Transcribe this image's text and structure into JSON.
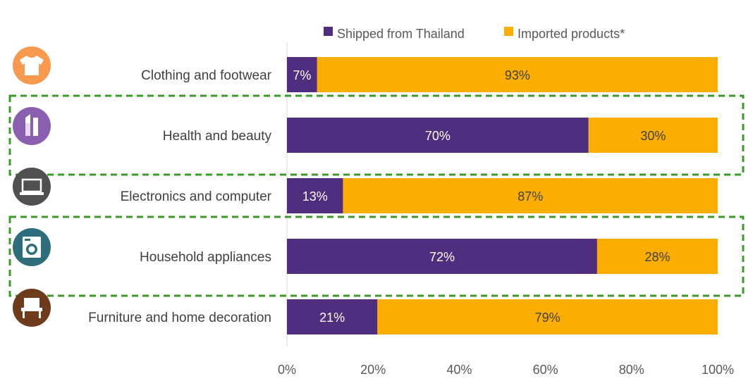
{
  "chart_data": {
    "type": "bar",
    "orientation": "horizontal",
    "stacked": true,
    "categories": [
      "Clothing and footwear",
      "Health and beauty",
      "Electronics and computer",
      "Household appliances",
      "Furniture and home decoration"
    ],
    "series": [
      {
        "name": "Shipped from Thailand",
        "values": [
          7,
          70,
          13,
          72,
          21
        ],
        "color": "#4f2d7f",
        "label_color": "#ffffff"
      },
      {
        "name": "Imported products*",
        "values": [
          93,
          30,
          87,
          28,
          79
        ],
        "color": "#fbae00",
        "label_color": "#404040"
      }
    ],
    "data_labels": [
      [
        "7%",
        "70%",
        "13%",
        "72%",
        "21%"
      ],
      [
        "93%",
        "30%",
        "87%",
        "28%",
        "79%"
      ]
    ],
    "xlim": [
      0,
      100
    ],
    "xticks": [
      "0%",
      "20%",
      "40%",
      "60%",
      "80%",
      "100%"
    ],
    "legend_position": "top",
    "highlighted_categories": [
      "Health and beauty",
      "Household appliances"
    ],
    "highlight_color": "#3a9a2a",
    "icons": [
      {
        "name": "shirt-icon",
        "color": "#f79a4f"
      },
      {
        "name": "lipstick-icon",
        "color": "#8a5fb0"
      },
      {
        "name": "laptop-icon",
        "color": "#505050"
      },
      {
        "name": "washing-machine-icon",
        "color": "#2e6e7c"
      },
      {
        "name": "chair-icon",
        "color": "#6e3b1d"
      }
    ]
  }
}
